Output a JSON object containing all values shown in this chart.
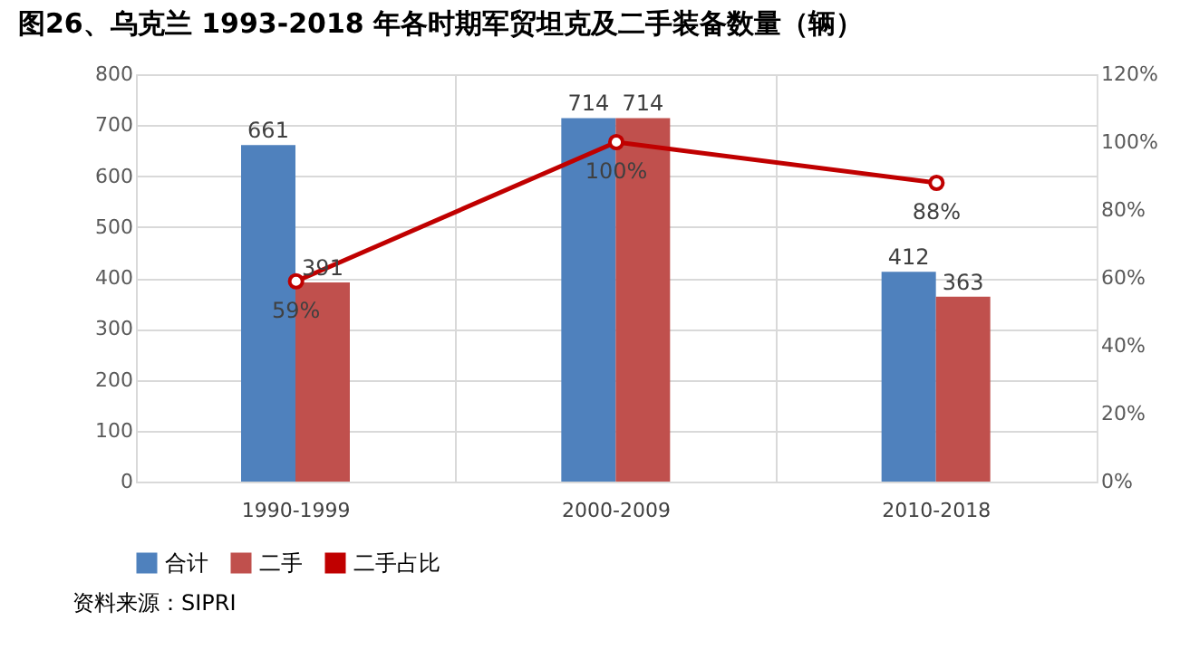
{
  "chart_data": {
    "type": "bar",
    "title": "图26、乌克兰 1993-2018 年各时期军贸坦克及二手装备数量（辆）",
    "categories": [
      "1990-1999",
      "2000-2009",
      "2010-2018"
    ],
    "series": [
      {
        "name": "合计",
        "color": "#4f81bd",
        "values": [
          661,
          714,
          412
        ]
      },
      {
        "name": "二手",
        "color": "#c0504d",
        "values": [
          391,
          714,
          363
        ]
      },
      {
        "name": "二手占比",
        "type": "line",
        "axis": "y2",
        "color": "#c00000",
        "marker": "circle",
        "line_style": "solid",
        "values": [
          59,
          100,
          88
        ],
        "value_labels": [
          "59%",
          "100%",
          "88%"
        ]
      }
    ],
    "ylim": [
      0,
      800
    ],
    "yticks": [
      0,
      100,
      200,
      300,
      400,
      500,
      600,
      700,
      800
    ],
    "y2lim": [
      0,
      120
    ],
    "y2ticks": [
      {
        "value": 0,
        "label": "0%"
      },
      {
        "value": 20,
        "label": "20%"
      },
      {
        "value": 40,
        "label": "40%"
      },
      {
        "value": 60,
        "label": "60%"
      },
      {
        "value": 80,
        "label": "80%"
      },
      {
        "value": 100,
        "label": "100%"
      },
      {
        "value": 120,
        "label": "120%"
      }
    ],
    "data_labels": true,
    "grid": "y",
    "legend": "bottom",
    "annotations": [
      "资料来源：SIPRI"
    ]
  }
}
